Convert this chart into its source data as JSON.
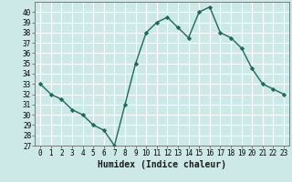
{
  "xlabel": "Humidex (Indice chaleur)",
  "x": [
    0,
    1,
    2,
    3,
    4,
    5,
    6,
    7,
    8,
    9,
    10,
    11,
    12,
    13,
    14,
    15,
    16,
    17,
    18,
    19,
    20,
    21,
    22,
    23
  ],
  "y": [
    33,
    32,
    31.5,
    30.5,
    30,
    29,
    28.5,
    27,
    31,
    35,
    38,
    39,
    39.5,
    38.5,
    37.5,
    40,
    40.5,
    38,
    37.5,
    36.5,
    34.5,
    33,
    32.5,
    32
  ],
  "line_color": "#1a6b5a",
  "marker": "D",
  "marker_size": 2.2,
  "linewidth": 1.0,
  "ylim": [
    27,
    41
  ],
  "xlim": [
    -0.5,
    23.5
  ],
  "yticks": [
    27,
    28,
    29,
    30,
    31,
    32,
    33,
    34,
    35,
    36,
    37,
    38,
    39,
    40
  ],
  "xticks": [
    0,
    1,
    2,
    3,
    4,
    5,
    6,
    7,
    8,
    9,
    10,
    11,
    12,
    13,
    14,
    15,
    16,
    17,
    18,
    19,
    20,
    21,
    22,
    23
  ],
  "bg_color": "#cce9e8",
  "grid_color": "#ffffff",
  "tick_fontsize": 5.5,
  "xlabel_fontsize": 7.0,
  "xlabel_fontweight": "bold"
}
